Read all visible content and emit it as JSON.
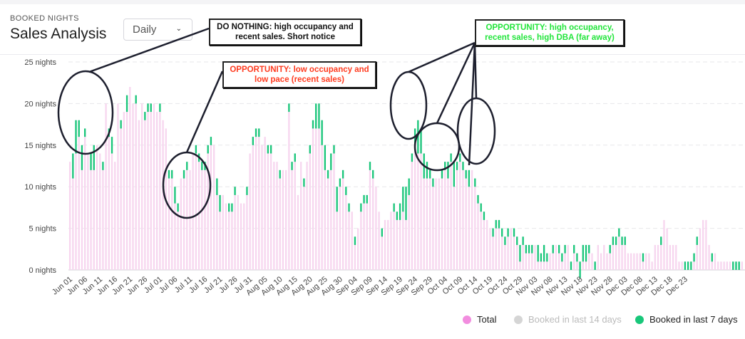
{
  "header": {
    "eyebrow": "BOOKED NIGHTS",
    "title": "Sales Analysis",
    "granularity": {
      "selected": "Daily"
    }
  },
  "annotations": [
    {
      "text": "DO NOTHING: high occupancy and recent sales. Short notice",
      "color": "#111111"
    },
    {
      "text": "OPPORTUNITY: low occupancy and low pace (recent sales)",
      "color": "#ff3b1f"
    },
    {
      "text": "OPPORTUNITY: high occupancy, recent sales, high DBA (far away)",
      "color": "#22e53b"
    }
  ],
  "legend": [
    {
      "label": "Total",
      "color": "#f28ddf"
    },
    {
      "label": "Booked in last 14 days",
      "color": "#d5d5d5"
    },
    {
      "label": "Booked in last 7 days",
      "color": "#18c77a"
    }
  ],
  "chart_data": {
    "type": "bar",
    "ylabel": "",
    "ylim": [
      0,
      25
    ],
    "y_ticks": [
      "0 nights",
      "5 nights",
      "10 nights",
      "15 nights",
      "20 nights",
      "25 nights"
    ],
    "x_ticks": [
      "Jun 01",
      "Jun 06",
      "Jun 11",
      "Jun 16",
      "Jun 21",
      "Jun 26",
      "Jul 01",
      "Jul 06",
      "Jul 11",
      "Jul 16",
      "Jul 21",
      "Jul 26",
      "Jul 31",
      "Aug 05",
      "Aug 10",
      "Aug 15",
      "Aug 20",
      "Aug 25",
      "Aug 30",
      "Sep 04",
      "Sep 09",
      "Sep 14",
      "Sep 19",
      "Sep 24",
      "Sep 29",
      "Oct 04",
      "Oct 09",
      "Oct 14",
      "Oct 19",
      "Oct 24",
      "Oct 29",
      "Nov 03",
      "Nov 08",
      "Nov 13",
      "Nov 18",
      "Nov 23",
      "Nov 28",
      "Dec 03",
      "Dec 08",
      "Dec 13",
      "Dec 18",
      "Dec 23"
    ],
    "grid": true,
    "series": [
      {
        "name": "Total",
        "color": "#f7d6ef",
        "values": [
          13,
          14,
          18,
          18,
          15,
          17,
          14,
          14,
          15,
          15,
          14,
          13,
          20,
          17,
          16,
          13,
          20,
          18,
          19,
          21,
          22,
          20,
          21,
          18,
          20,
          19,
          20,
          20,
          20,
          19,
          20,
          18,
          17,
          12,
          12,
          10,
          8,
          11,
          12,
          13,
          12,
          14,
          15,
          14,
          13,
          13,
          15,
          16,
          15,
          11,
          9,
          9,
          8,
          8,
          8,
          10,
          9,
          8,
          8,
          10,
          14,
          16,
          17,
          17,
          15,
          16,
          15,
          15,
          13,
          13,
          12,
          12,
          12,
          20,
          13,
          14,
          9,
          13,
          11,
          13,
          15,
          18,
          20,
          20,
          18,
          15,
          12,
          14,
          15,
          10,
          11,
          12,
          10,
          8,
          7,
          4,
          5,
          8,
          9,
          9,
          13,
          12,
          10,
          7,
          5,
          6,
          6,
          7,
          8,
          7,
          8,
          10,
          10,
          11,
          14,
          17,
          18,
          17,
          14,
          13,
          12,
          11,
          11,
          11,
          12,
          13,
          13,
          14,
          13,
          13,
          14,
          13,
          12,
          12,
          12,
          11,
          9,
          8,
          7,
          6,
          5,
          5,
          6,
          6,
          5,
          4,
          5,
          5,
          5,
          4,
          3,
          4,
          3,
          3,
          3,
          3,
          3,
          2,
          3,
          2,
          2,
          3,
          3,
          3,
          2,
          3,
          3,
          1,
          3,
          2,
          1,
          3,
          3,
          3,
          2,
          1,
          3,
          2,
          3,
          2,
          3,
          4,
          4,
          5,
          4,
          4,
          2,
          2,
          2,
          2,
          2,
          2,
          2,
          2,
          1,
          3,
          3,
          4,
          6,
          5,
          3,
          3,
          3,
          1,
          1,
          1,
          1,
          1,
          2,
          4,
          5,
          6,
          6,
          3,
          2,
          2,
          1,
          1,
          1,
          1,
          1,
          1,
          1,
          1,
          1
        ]
      },
      {
        "name": "Booked in last 7 days",
        "color": "#18c77a",
        "values": [
          0,
          3,
          4,
          2,
          3,
          1,
          0,
          2,
          3,
          0,
          0,
          1,
          0,
          1,
          2,
          0,
          0,
          1,
          0,
          2,
          0,
          0,
          1,
          0,
          0,
          1,
          1,
          1,
          0,
          0,
          1,
          0,
          0,
          1,
          1,
          2,
          1,
          0,
          1,
          1,
          0,
          0,
          1,
          1,
          1,
          1,
          1,
          1,
          0,
          2,
          2,
          0,
          0,
          1,
          1,
          1,
          0,
          0,
          0,
          1,
          0,
          1,
          1,
          1,
          0,
          0,
          1,
          1,
          0,
          0,
          1,
          0,
          0,
          1,
          1,
          1,
          0,
          0,
          1,
          0,
          1,
          1,
          3,
          3,
          3,
          3,
          1,
          2,
          1,
          3,
          1,
          1,
          1,
          1,
          0,
          1,
          0,
          1,
          1,
          1,
          1,
          1,
          0,
          0,
          1,
          0,
          0,
          0,
          1,
          1,
          2,
          3,
          4,
          2,
          1,
          2,
          4,
          3,
          3,
          2,
          1,
          1,
          0,
          0,
          1,
          1,
          2,
          1,
          3,
          1,
          1,
          1,
          1,
          2,
          0,
          1,
          1,
          1,
          1,
          0,
          0,
          1,
          1,
          1,
          1,
          1,
          1,
          0,
          1,
          1,
          2,
          1,
          1,
          1,
          1,
          0,
          2,
          1,
          2,
          1,
          0,
          1,
          0,
          1,
          1,
          1,
          0,
          1,
          1,
          1,
          2,
          2,
          2,
          1,
          0,
          1,
          0,
          0,
          0,
          0,
          1,
          1,
          1,
          1,
          1,
          1,
          0,
          0,
          0,
          0,
          0,
          1,
          0,
          0,
          0,
          0,
          0,
          1,
          0,
          0,
          0,
          0,
          0,
          0,
          0,
          1,
          1,
          1,
          1,
          1,
          0,
          0,
          0,
          0,
          1,
          0,
          0,
          0,
          0,
          0,
          0,
          1,
          1,
          1,
          0
        ]
      }
    ]
  }
}
